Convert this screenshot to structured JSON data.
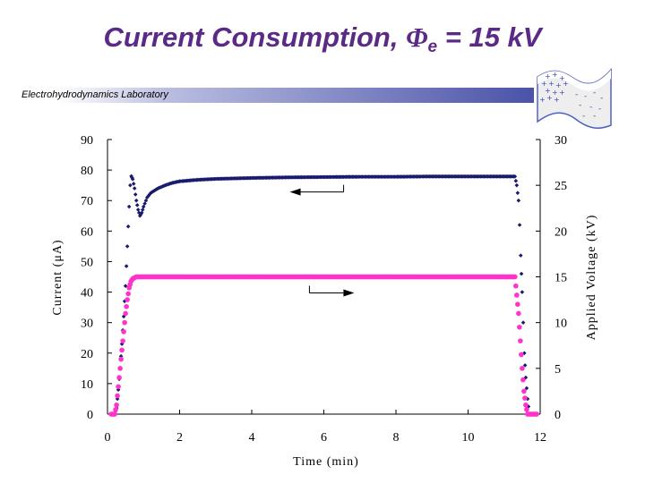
{
  "title": {
    "main": "Current  Consumption, ",
    "symbol": "Φ",
    "subscript": "e",
    "tail": " = 15 kV"
  },
  "banner": "Electrohydrodynamics Laboratory",
  "colors": {
    "title": "#5b2a86",
    "current_series": "#1a1a6e",
    "voltage_series": "#ff33cc",
    "banner_dark": "#4a53a8"
  },
  "chart_data": {
    "type": "scatter",
    "xlabel": "Time (min)",
    "ylabel": "Current (μA)",
    "y2label": "Applied Voltage (kV)",
    "xlim": [
      0,
      12
    ],
    "ylim": [
      0,
      90
    ],
    "y2lim": [
      0,
      30
    ],
    "x_ticks": [
      "0",
      "2",
      "4",
      "6",
      "8",
      "10",
      "12"
    ],
    "y_ticks": [
      "0",
      "10",
      "20",
      "30",
      "40",
      "50",
      "60",
      "70",
      "80",
      "90"
    ],
    "y2_ticks": [
      "0",
      "5",
      "10",
      "15",
      "20",
      "25",
      "30"
    ],
    "grid": false,
    "series": [
      {
        "axis": "left",
        "points": [
          [
            0.1,
            0
          ],
          [
            0.2,
            0
          ],
          [
            0.25,
            2
          ],
          [
            0.3,
            8
          ],
          [
            0.35,
            15
          ],
          [
            0.4,
            23
          ],
          [
            0.45,
            32
          ],
          [
            0.5,
            42
          ],
          [
            0.55,
            55
          ],
          [
            0.6,
            68
          ],
          [
            0.63,
            75
          ],
          [
            0.66,
            78
          ],
          [
            0.7,
            77
          ],
          [
            0.75,
            74
          ],
          [
            0.8,
            70
          ],
          [
            0.85,
            67
          ],
          [
            0.9,
            65
          ],
          [
            0.95,
            66
          ],
          [
            1.0,
            68
          ],
          [
            1.1,
            71
          ],
          [
            1.2,
            72.5
          ],
          [
            1.4,
            74
          ],
          [
            1.6,
            75
          ],
          [
            1.8,
            75.8
          ],
          [
            2.0,
            76.3
          ],
          [
            2.5,
            76.8
          ],
          [
            3.0,
            77.1
          ],
          [
            4.0,
            77.4
          ],
          [
            5.0,
            77.6
          ],
          [
            6.0,
            77.7
          ],
          [
            7.0,
            77.8
          ],
          [
            8.0,
            77.8
          ],
          [
            9.0,
            77.9
          ],
          [
            10.0,
            77.9
          ],
          [
            11.0,
            77.9
          ],
          [
            11.3,
            77.9
          ],
          [
            11.35,
            75
          ],
          [
            11.4,
            70
          ],
          [
            11.43,
            62
          ],
          [
            11.46,
            52
          ],
          [
            11.5,
            40
          ],
          [
            11.53,
            30
          ],
          [
            11.56,
            20
          ],
          [
            11.6,
            12
          ],
          [
            11.65,
            5
          ],
          [
            11.7,
            0
          ],
          [
            11.85,
            0
          ]
        ]
      },
      {
        "axis": "right",
        "points": [
          [
            0.1,
            0
          ],
          [
            0.2,
            0
          ],
          [
            0.25,
            1
          ],
          [
            0.3,
            3
          ],
          [
            0.35,
            5
          ],
          [
            0.4,
            7
          ],
          [
            0.45,
            9
          ],
          [
            0.5,
            11
          ],
          [
            0.55,
            12.5
          ],
          [
            0.6,
            13.8
          ],
          [
            0.65,
            14.5
          ],
          [
            0.7,
            14.8
          ],
          [
            0.8,
            15
          ],
          [
            1.0,
            15
          ],
          [
            2.0,
            15
          ],
          [
            4.0,
            15
          ],
          [
            6.0,
            15
          ],
          [
            8.0,
            15
          ],
          [
            10.0,
            15
          ],
          [
            11.0,
            15
          ],
          [
            11.3,
            15
          ],
          [
            11.35,
            13
          ],
          [
            11.4,
            11
          ],
          [
            11.45,
            8
          ],
          [
            11.5,
            5
          ],
          [
            11.55,
            2.5
          ],
          [
            11.6,
            1
          ],
          [
            11.65,
            0
          ],
          [
            11.9,
            0
          ]
        ]
      }
    ],
    "annotations": [
      {
        "type": "arrow",
        "direction": "left",
        "points_to": "left axis",
        "series": 0,
        "x": 6.3,
        "y": 77.5
      },
      {
        "type": "arrow",
        "direction": "right",
        "points_to": "right axis",
        "series": 1,
        "x": 5.6,
        "y": 15
      }
    ]
  }
}
